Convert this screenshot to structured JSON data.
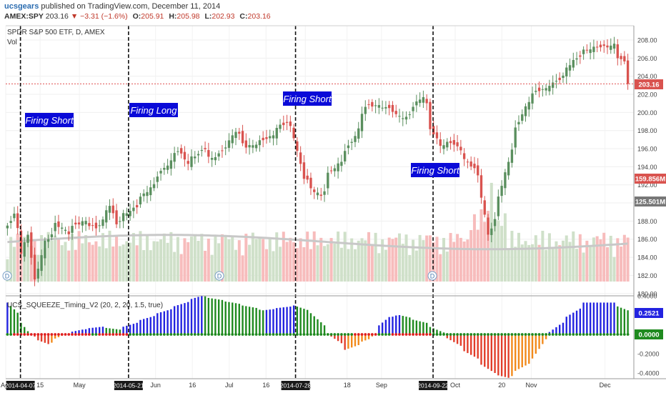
{
  "header": {
    "author": "ucsgears",
    "published": "published on TradingView.com, December 11, 2014",
    "symbol": "AMEX:SPY",
    "last": "203.16",
    "change": "▼ −3.31 (−1.6%)",
    "ohlc": [
      {
        "label": "O:",
        "value": "205.91"
      },
      {
        "label": "H:",
        "value": "205.98"
      },
      {
        "label": "L:",
        "value": "202.93"
      },
      {
        "label": "C:",
        "value": "203.16"
      }
    ]
  },
  "main_pane": {
    "title": "SPDR S&P 500 ETF, D, AMEX",
    "vol_label": "Vol",
    "last_price_tag": "203.16",
    "volume_tag": "159.856M",
    "volume_ma_tag": "125.501M"
  },
  "indicator_pane": {
    "title": "UCS_SQUEEZE_Timing_V2 (20, 2, 20, 1.5, true)",
    "value_tag": "0.2521",
    "zero_tag": "0.0000"
  },
  "annotations": [
    "Firing Short",
    "Firing Long",
    "Firing Short",
    "Firing Short"
  ],
  "colors": {
    "bull": "#5a8f5e",
    "bear": "#d9534f",
    "vol_bull": "#cfe0c9",
    "vol_bear": "#f7bcbc",
    "label_bg": "#0a0ad8",
    "hist_blue": "#2323e0",
    "hist_green": "#1f8a1f",
    "hist_red": "#e23d2a",
    "hist_orange": "#f28a1b"
  },
  "chart_data": [
    {
      "type": "candlestick",
      "title": "SPDR S&P 500 ETF, D, AMEX",
      "x_start": "2014-04-01",
      "x_end": "2014-12-11",
      "x_ticks": [
        "Apr",
        "15",
        "May",
        "Jun",
        "16",
        "Jul",
        "16",
        "Aug",
        "18",
        "Sep",
        "Oct",
        "20",
        "Nov",
        "Dec"
      ],
      "x_highlight_dates": [
        "2014-04-07",
        "2014-05-21",
        "2014-07-28",
        "2014-09-22"
      ],
      "y_ticks": [
        "208.00",
        "206.00",
        "204.00",
        "202.00",
        "200.00",
        "198.00",
        "196.00",
        "194.00",
        "192.00",
        "190.00",
        "188.00",
        "186.00",
        "184.00",
        "182.00",
        "180.00"
      ],
      "ylim": [
        180,
        208.5
      ],
      "last_price": 203.16,
      "close_path": [
        [
          "2014-04-01",
          187.5
        ],
        [
          "2014-04-03",
          188.5
        ],
        [
          "2014-04-04",
          187.0
        ],
        [
          "2014-04-07",
          184.2
        ],
        [
          "2014-04-09",
          186.4
        ],
        [
          "2014-04-11",
          181.5
        ],
        [
          "2014-04-14",
          183.0
        ],
        [
          "2014-04-16",
          186.0
        ],
        [
          "2014-04-21",
          187.8
        ],
        [
          "2014-04-25",
          186.4
        ],
        [
          "2014-05-02",
          188.1
        ],
        [
          "2014-05-07",
          187.5
        ],
        [
          "2014-05-13",
          189.7
        ],
        [
          "2014-05-15",
          187.5
        ],
        [
          "2014-05-21",
          189.0
        ],
        [
          "2014-05-28",
          191.6
        ],
        [
          "2014-06-05",
          194.0
        ],
        [
          "2014-06-10",
          195.6
        ],
        [
          "2014-06-13",
          194.5
        ],
        [
          "2014-06-20",
          196.2
        ],
        [
          "2014-06-24",
          194.8
        ],
        [
          "2014-06-30",
          196.0
        ],
        [
          "2014-07-03",
          198.0
        ],
        [
          "2014-07-08",
          196.5
        ],
        [
          "2014-07-17",
          197.0
        ],
        [
          "2014-07-24",
          198.9
        ],
        [
          "2014-07-28",
          197.5
        ],
        [
          "2014-07-31",
          193.0
        ],
        [
          "2014-08-07",
          190.5
        ],
        [
          "2014-08-11",
          193.0
        ],
        [
          "2014-08-19",
          196.5
        ],
        [
          "2014-08-26",
          200.5
        ],
        [
          "2014-09-04",
          200.5
        ],
        [
          "2014-09-11",
          199.6
        ],
        [
          "2014-09-18",
          201.5
        ],
        [
          "2014-09-22",
          198.0
        ],
        [
          "2014-09-25",
          196.5
        ],
        [
          "2014-09-30",
          197.0
        ],
        [
          "2014-10-03",
          196.0
        ],
        [
          "2014-10-09",
          193.5
        ],
        [
          "2014-10-13",
          190.5
        ],
        [
          "2014-10-15",
          186.5
        ],
        [
          "2014-10-20",
          191.0
        ],
        [
          "2014-10-24",
          196.0
        ],
        [
          "2014-10-31",
          201.0
        ],
        [
          "2014-11-05",
          202.5
        ],
        [
          "2014-11-14",
          204.0
        ],
        [
          "2014-11-21",
          206.0
        ],
        [
          "2014-11-28",
          207.5
        ],
        [
          "2014-12-05",
          207.5
        ],
        [
          "2014-12-08",
          206.0
        ],
        [
          "2014-12-10",
          205.3
        ],
        [
          "2014-12-11",
          203.16
        ]
      ]
    },
    {
      "type": "bar",
      "title": "Vol",
      "series_name": "Vol",
      "last_volume": "159.856M",
      "volume_ma": "125.501M"
    },
    {
      "type": "bar",
      "title": "UCS_SQUEEZE_Timing_V2 (20, 2, 20, 1.5, true)",
      "y_ticks": [
        "0.4000",
        "0.2000",
        "0.0000",
        "-0.2000",
        "-0.4000"
      ],
      "ylim": [
        -0.5,
        0.45
      ],
      "last_value": 0.2521,
      "momentum_path": [
        [
          "2014-04-01",
          0.33
        ],
        [
          "2014-04-07",
          0.12
        ],
        [
          "2014-04-10",
          -0.01
        ],
        [
          "2014-04-17",
          -0.1
        ],
        [
          "2014-04-24",
          0.0
        ],
        [
          "2014-05-01",
          0.05
        ],
        [
          "2014-05-09",
          0.08
        ],
        [
          "2014-05-16",
          0.05
        ],
        [
          "2014-05-21",
          0.1
        ],
        [
          "2014-06-05",
          0.25
        ],
        [
          "2014-06-19",
          0.4
        ],
        [
          "2014-07-02",
          0.33
        ],
        [
          "2014-07-15",
          0.25
        ],
        [
          "2014-07-28",
          0.3
        ],
        [
          "2014-08-04",
          0.22
        ],
        [
          "2014-08-11",
          0.0
        ],
        [
          "2014-08-18",
          -0.16
        ],
        [
          "2014-08-27",
          -0.05
        ],
        [
          "2014-09-04",
          0.18
        ],
        [
          "2014-09-09",
          0.2
        ],
        [
          "2014-09-19",
          0.12
        ],
        [
          "2014-09-26",
          0.02
        ],
        [
          "2014-10-01",
          -0.08
        ],
        [
          "2014-10-10",
          -0.25
        ],
        [
          "2014-10-17",
          -0.4
        ],
        [
          "2014-10-23",
          -0.45
        ],
        [
          "2014-11-03",
          -0.25
        ],
        [
          "2014-11-07",
          -0.05
        ],
        [
          "2014-11-13",
          0.1
        ],
        [
          "2014-11-24",
          0.33
        ],
        [
          "2014-12-05",
          0.33
        ],
        [
          "2014-12-11",
          0.25
        ]
      ]
    }
  ]
}
